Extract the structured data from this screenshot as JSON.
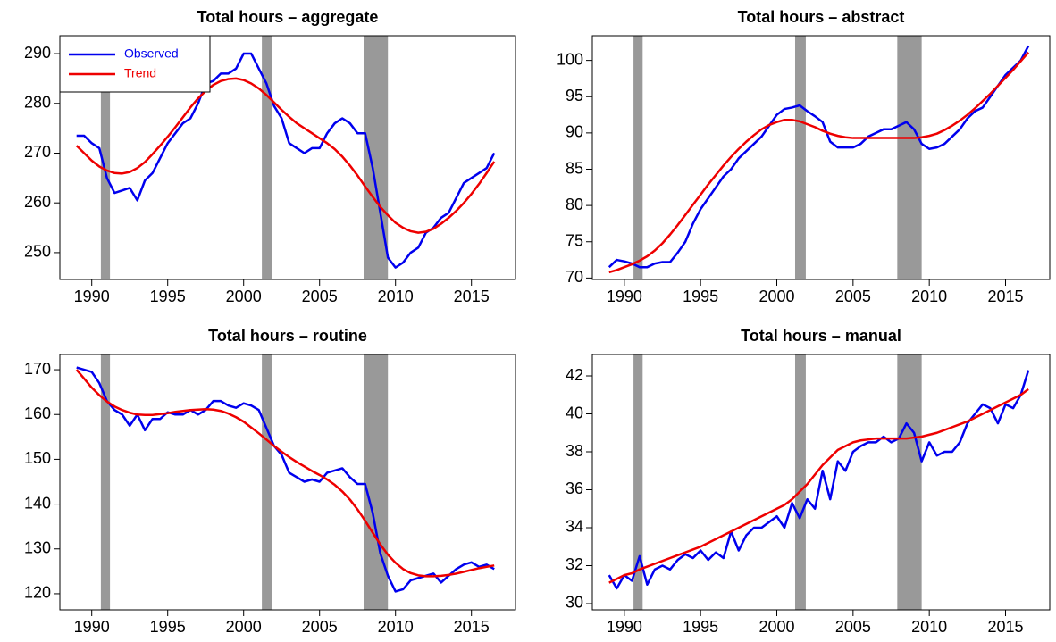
{
  "chart_data": [
    {
      "type": "line",
      "title": "Total hours – aggregate",
      "legend": "topleft",
      "xlim": [
        1987.9,
        2017.9
      ],
      "xticks": [
        1990,
        1995,
        2000,
        2005,
        2010,
        2015
      ],
      "ylim": [
        244.6,
        293.6
      ],
      "yticks": [
        250,
        260,
        270,
        280,
        290
      ],
      "shaded_periods": [
        [
          1990.6,
          1991.2
        ],
        [
          2001.2,
          2001.9
        ],
        [
          2007.9,
          2009.5
        ]
      ],
      "shade_color": "#999999",
      "x": [
        1989,
        1989.5,
        1990,
        1990.5,
        1991,
        1991.5,
        1992,
        1992.5,
        1993,
        1993.5,
        1994,
        1994.5,
        1995,
        1995.5,
        1996,
        1996.5,
        1997,
        1997.5,
        1998,
        1998.5,
        1999,
        1999.5,
        2000,
        2000.5,
        2001,
        2001.5,
        2002,
        2002.5,
        2003,
        2003.5,
        2004,
        2004.5,
        2005,
        2005.5,
        2006,
        2006.5,
        2007,
        2007.5,
        2008,
        2008.5,
        2009,
        2009.5,
        2010,
        2010.5,
        2011,
        2011.5,
        2012,
        2012.5,
        2013,
        2013.5,
        2014,
        2014.5,
        2015,
        2015.5,
        2016,
        2016.5
      ],
      "series": [
        {
          "name": "Observed",
          "color": "#0000ee",
          "values": [
            273.5,
            273.5,
            272,
            271,
            265,
            262,
            262.5,
            263,
            260.5,
            264.5,
            266,
            269,
            272,
            274,
            276,
            277,
            280,
            284,
            284.5,
            286,
            286,
            287,
            290,
            290,
            287,
            284,
            279.5,
            277,
            272,
            271,
            270,
            271,
            271,
            274,
            276,
            277,
            276,
            274,
            274,
            267,
            258,
            249,
            247,
            248,
            250,
            251,
            254,
            255,
            257,
            258,
            261,
            264,
            265,
            266,
            267,
            270
          ]
        },
        {
          "name": "Trend",
          "color": "#ee0000",
          "values": [
            271.5,
            270,
            268.5,
            267.3,
            266.5,
            266,
            265.9,
            266.2,
            267,
            268.2,
            269.8,
            271.5,
            273.3,
            275.2,
            277.2,
            279.2,
            281,
            282.5,
            283.7,
            284.5,
            284.9,
            285,
            284.7,
            284,
            283,
            281.7,
            280.2,
            278.7,
            277.3,
            276,
            275,
            274,
            273,
            272,
            270.8,
            269.3,
            267.5,
            265.5,
            263.3,
            261.2,
            259.2,
            257.5,
            256,
            255,
            254.3,
            254,
            254.2,
            254.8,
            255.8,
            257,
            258.4,
            260,
            261.8,
            263.8,
            266,
            268.3
          ]
        }
      ]
    },
    {
      "type": "line",
      "title": "Total hours – abstract",
      "xlim": [
        1987.9,
        2017.9
      ],
      "xticks": [
        1990,
        1995,
        2000,
        2005,
        2010,
        2015
      ],
      "ylim": [
        69.8,
        103.4
      ],
      "yticks": [
        70,
        75,
        80,
        85,
        90,
        95,
        100
      ],
      "shaded_periods": [
        [
          1990.6,
          1991.2
        ],
        [
          2001.2,
          2001.9
        ],
        [
          2007.9,
          2009.5
        ]
      ],
      "shade_color": "#999999",
      "x": [
        1989,
        1989.5,
        1990,
        1990.5,
        1991,
        1991.5,
        1992,
        1992.5,
        1993,
        1993.5,
        1994,
        1994.5,
        1995,
        1995.5,
        1996,
        1996.5,
        1997,
        1997.5,
        1998,
        1998.5,
        1999,
        1999.5,
        2000,
        2000.5,
        2001,
        2001.5,
        2002,
        2002.5,
        2003,
        2003.5,
        2004,
        2004.5,
        2005,
        2005.5,
        2006,
        2006.5,
        2007,
        2007.5,
        2008,
        2008.5,
        2009,
        2009.5,
        2010,
        2010.5,
        2011,
        2011.5,
        2012,
        2012.5,
        2013,
        2013.5,
        2014,
        2014.5,
        2015,
        2015.5,
        2016,
        2016.5
      ],
      "series": [
        {
          "color": "#0000ee",
          "values": [
            71.5,
            72.5,
            72.3,
            72,
            71.5,
            71.5,
            72,
            72.2,
            72.2,
            73.5,
            75,
            77.5,
            79.5,
            81,
            82.5,
            84,
            85,
            86.5,
            87.5,
            88.5,
            89.5,
            91,
            92.5,
            93.3,
            93.5,
            93.8,
            93,
            92.3,
            91.5,
            88.8,
            88,
            88,
            88,
            88.5,
            89.5,
            90,
            90.5,
            90.5,
            91,
            91.5,
            90.5,
            88.5,
            87.8,
            88,
            88.5,
            89.5,
            90.5,
            92,
            93,
            93.5,
            95,
            96.5,
            98,
            99,
            100,
            102
          ]
        },
        {
          "color": "#ee0000",
          "values": [
            70.8,
            71.1,
            71.5,
            71.9,
            72.4,
            73,
            73.8,
            74.8,
            76,
            77.3,
            78.7,
            80.1,
            81.5,
            82.9,
            84.2,
            85.5,
            86.7,
            87.8,
            88.8,
            89.7,
            90.5,
            91.1,
            91.5,
            91.8,
            91.8,
            91.6,
            91.2,
            90.8,
            90.3,
            89.9,
            89.6,
            89.4,
            89.3,
            89.3,
            89.3,
            89.3,
            89.3,
            89.3,
            89.3,
            89.3,
            89.3,
            89.4,
            89.6,
            89.9,
            90.4,
            91,
            91.7,
            92.5,
            93.4,
            94.4,
            95.4,
            96.5,
            97.6,
            98.7,
            99.9,
            101.1
          ]
        }
      ]
    },
    {
      "type": "line",
      "title": "Total hours – routine",
      "xlim": [
        1987.9,
        2017.9
      ],
      "xticks": [
        1990,
        1995,
        2000,
        2005,
        2010,
        2015
      ],
      "ylim": [
        116.4,
        173.4
      ],
      "yticks": [
        120,
        130,
        140,
        150,
        160,
        170
      ],
      "shaded_periods": [
        [
          1990.6,
          1991.2
        ],
        [
          2001.2,
          2001.9
        ],
        [
          2007.9,
          2009.5
        ]
      ],
      "shade_color": "#999999",
      "x": [
        1989,
        1989.5,
        1990,
        1990.5,
        1991,
        1991.5,
        1992,
        1992.5,
        1993,
        1993.5,
        1994,
        1994.5,
        1995,
        1995.5,
        1996,
        1996.5,
        1997,
        1997.5,
        1998,
        1998.5,
        1999,
        1999.5,
        2000,
        2000.5,
        2001,
        2001.5,
        2002,
        2002.5,
        2003,
        2003.5,
        2004,
        2004.5,
        2005,
        2005.5,
        2006,
        2006.5,
        2007,
        2007.5,
        2008,
        2008.5,
        2009,
        2009.5,
        2010,
        2010.5,
        2011,
        2011.5,
        2012,
        2012.5,
        2013,
        2013.5,
        2014,
        2014.5,
        2015,
        2015.5,
        2016,
        2016.5
      ],
      "series": [
        {
          "color": "#0000ee",
          "values": [
            170.5,
            170,
            169.5,
            167,
            163,
            161,
            160,
            157.5,
            160,
            156.5,
            159,
            159,
            160.5,
            160,
            160,
            161,
            160,
            161,
            163,
            163,
            162,
            161.5,
            162.5,
            162,
            161,
            157,
            153,
            151,
            147,
            146,
            145,
            145.5,
            145,
            147,
            147.5,
            148,
            146,
            144.5,
            144.5,
            138,
            129,
            124,
            120.5,
            121,
            123,
            123.5,
            124,
            124.5,
            122.5,
            124,
            125.5,
            126.5,
            127,
            126,
            126.5,
            125.5
          ]
        },
        {
          "color": "#ee0000",
          "values": [
            170,
            168,
            166,
            164.3,
            162.9,
            161.8,
            161,
            160.4,
            160,
            159.9,
            159.9,
            160.1,
            160.3,
            160.6,
            160.8,
            161,
            161.1,
            161.2,
            161.1,
            160.8,
            160.2,
            159.4,
            158.4,
            157.1,
            155.8,
            154.4,
            153,
            151.7,
            150.5,
            149.4,
            148.4,
            147.4,
            146.5,
            145.5,
            144.3,
            142.8,
            141,
            138.8,
            136.3,
            133.6,
            131,
            128.7,
            126.9,
            125.5,
            124.6,
            124.1,
            123.9,
            123.9,
            124,
            124.2,
            124.5,
            124.9,
            125.3,
            125.7,
            126,
            126.3
          ]
        }
      ]
    },
    {
      "type": "line",
      "title": "Total hours – manual",
      "xlim": [
        1987.9,
        2017.9
      ],
      "xticks": [
        1990,
        1995,
        2000,
        2005,
        2010,
        2015
      ],
      "ylim": [
        29.67,
        43.13
      ],
      "yticks": [
        30,
        32,
        34,
        36,
        38,
        40,
        42
      ],
      "shaded_periods": [
        [
          1990.6,
          1991.2
        ],
        [
          2001.2,
          2001.9
        ],
        [
          2007.9,
          2009.5
        ]
      ],
      "shade_color": "#999999",
      "x": [
        1989,
        1989.5,
        1990,
        1990.5,
        1991,
        1991.5,
        1992,
        1992.5,
        1993,
        1993.5,
        1994,
        1994.5,
        1995,
        1995.5,
        1996,
        1996.5,
        1997,
        1997.5,
        1998,
        1998.5,
        1999,
        1999.5,
        2000,
        2000.5,
        2001,
        2001.5,
        2002,
        2002.5,
        2003,
        2003.5,
        2004,
        2004.5,
        2005,
        2005.5,
        2006,
        2006.5,
        2007,
        2007.5,
        2008,
        2008.5,
        2009,
        2009.5,
        2010,
        2010.5,
        2011,
        2011.5,
        2012,
        2012.5,
        2013,
        2013.5,
        2014,
        2014.5,
        2015,
        2015.5,
        2016,
        2016.5
      ],
      "series": [
        {
          "color": "#0000ee",
          "values": [
            31.5,
            30.8,
            31.5,
            31.2,
            32.5,
            31,
            31.8,
            32,
            31.8,
            32.3,
            32.6,
            32.4,
            32.8,
            32.3,
            32.7,
            32.4,
            33.8,
            32.8,
            33.6,
            34,
            34,
            34.3,
            34.6,
            34,
            35.3,
            34.5,
            35.5,
            35,
            37,
            35.5,
            37.5,
            37,
            38,
            38.3,
            38.5,
            38.5,
            38.8,
            38.5,
            38.7,
            39.5,
            39,
            37.5,
            38.5,
            37.8,
            38,
            38,
            38.5,
            39.5,
            40,
            40.5,
            40.3,
            39.5,
            40.5,
            40.3,
            41,
            42.3
          ]
        },
        {
          "color": "#ee0000",
          "values": [
            31.1,
            31.3,
            31.5,
            31.6,
            31.8,
            31.95,
            32.1,
            32.25,
            32.4,
            32.55,
            32.7,
            32.85,
            33,
            33.2,
            33.4,
            33.6,
            33.8,
            34,
            34.2,
            34.4,
            34.6,
            34.8,
            35,
            35.2,
            35.5,
            35.9,
            36.3,
            36.8,
            37.3,
            37.7,
            38.1,
            38.3,
            38.5,
            38.6,
            38.65,
            38.7,
            38.7,
            38.7,
            38.7,
            38.7,
            38.75,
            38.8,
            38.9,
            39,
            39.15,
            39.3,
            39.45,
            39.6,
            39.8,
            40,
            40.2,
            40.4,
            40.6,
            40.8,
            41,
            41.3
          ]
        }
      ]
    }
  ]
}
